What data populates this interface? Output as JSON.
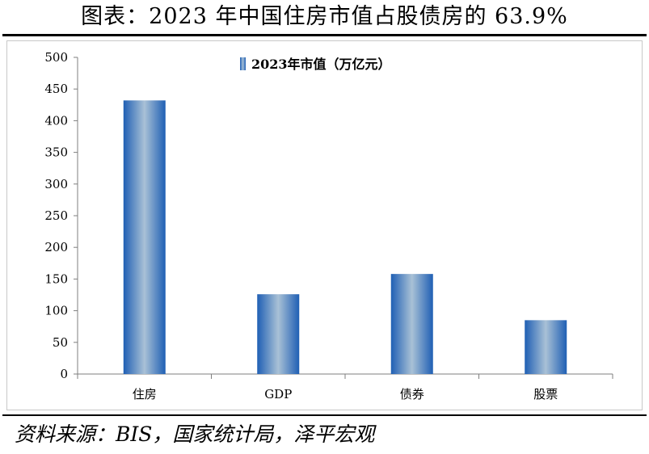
{
  "title": "图表：2023 年中国住房市值占股债房的 63.9%",
  "source": "资料来源：BIS，国家统计局，泽平宏观",
  "colors": {
    "bar_edge": "#1f5fb4",
    "bar_center": "#a9c1d6",
    "axis": "#7f7f7f"
  },
  "chart_data": {
    "type": "bar",
    "categories": [
      "住房",
      "GDP",
      "债券",
      "股票"
    ],
    "series": [
      {
        "name": "2023年市值（万亿元）",
        "values": [
          432,
          126,
          158,
          85
        ]
      }
    ],
    "ylim": [
      0,
      500
    ],
    "yticks": [
      0,
      50,
      100,
      150,
      200,
      250,
      300,
      350,
      400,
      450,
      500
    ],
    "grid": false,
    "legend": "top-center"
  }
}
